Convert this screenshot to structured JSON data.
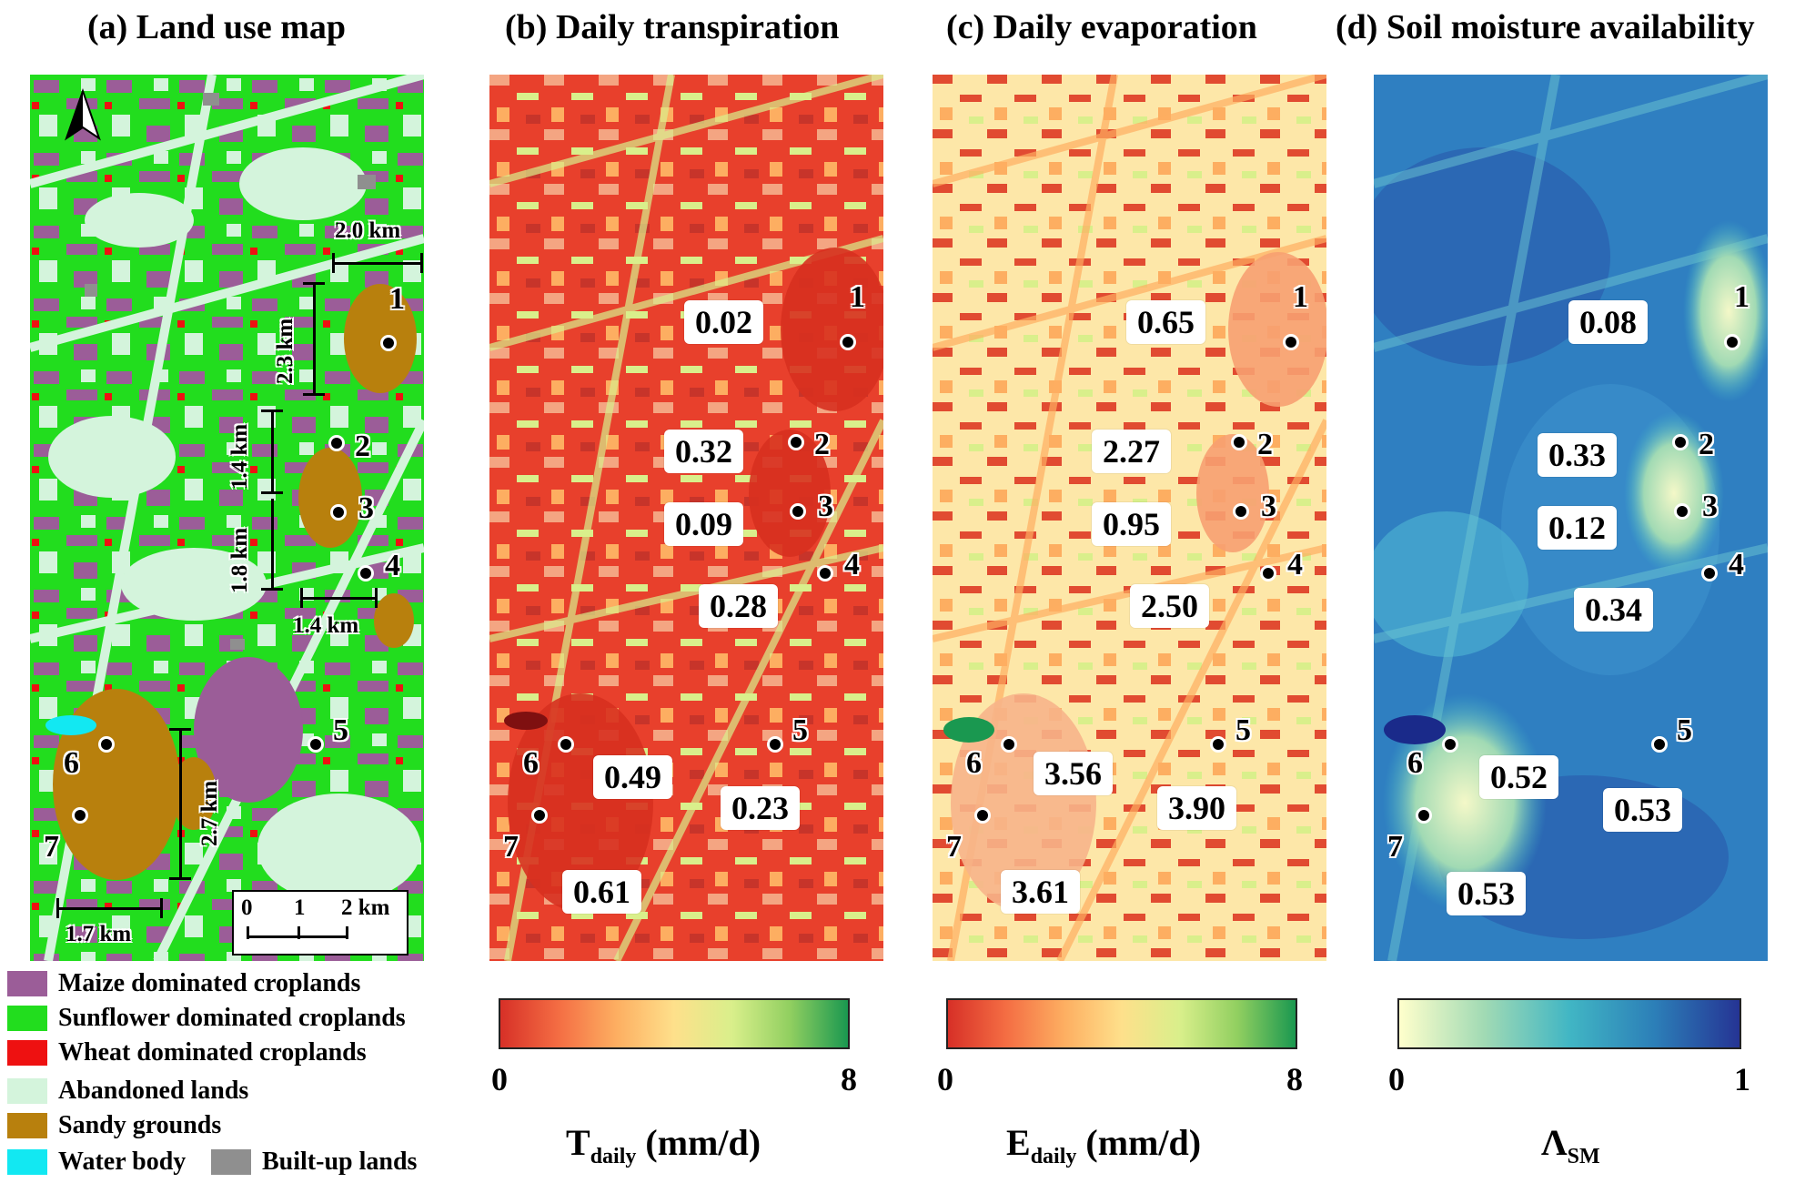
{
  "panels": {
    "a": {
      "title": "(a) Land use map"
    },
    "b": {
      "title": "(b) Daily transpiration",
      "values": [
        "0.02",
        "0.32",
        "0.09",
        "0.28",
        "0.49",
        "0.23",
        "0.61"
      ],
      "colorbar": {
        "min": "0",
        "max": "8",
        "label_main": "T",
        "label_sub": "daily",
        "label_unit": " (mm/d)"
      }
    },
    "c": {
      "title": "(c) Daily evaporation",
      "values": [
        "0.65",
        "2.27",
        "0.95",
        "2.50",
        "3.56",
        "3.90",
        "3.61"
      ],
      "colorbar": {
        "min": "0",
        "max": "8",
        "label_main": "E",
        "label_sub": "daily",
        "label_unit": " (mm/d)"
      }
    },
    "d": {
      "title": "(d) Soil moisture availability",
      "values": [
        "0.08",
        "0.33",
        "0.12",
        "0.34",
        "0.52",
        "0.53",
        "0.53"
      ],
      "colorbar": {
        "min": "0",
        "max": "1",
        "label_main": "Λ",
        "label_sub": "SM",
        "label_unit": ""
      }
    }
  },
  "site_numbers": [
    "1",
    "2",
    "3",
    "4",
    "5",
    "6",
    "7"
  ],
  "distances": [
    "2.0 km",
    "2.3 km",
    "1.4 km",
    "1.8 km",
    "1.4 km",
    "2.7 km",
    "1.7 km"
  ],
  "scale_bar": {
    "t0": "0",
    "t1": "1",
    "t2": "2 km"
  },
  "legend": [
    {
      "label": "Maize dominated croplands",
      "color": "#9b5d98"
    },
    {
      "label": "Sunflower dominated croplands",
      "color": "#22dd1e"
    },
    {
      "label": "Wheat dominated croplands",
      "color": "#ee1111"
    },
    {
      "label": "Abandoned lands",
      "color": "#d4f4dc"
    },
    {
      "label": "Sandy grounds",
      "color": "#b8800d"
    },
    {
      "label": "Water body",
      "color": "#12e8f2"
    },
    {
      "label": "Built-up lands",
      "color": "#8f8f8f"
    }
  ],
  "colors": {
    "transp_ramp": [
      "#d73027",
      "#f46d43",
      "#fdae61",
      "#fee08b",
      "#d9ef8b",
      "#91cf60",
      "#1a9850"
    ],
    "soil_ramp": [
      "#ffffcc",
      "#a1dab4",
      "#41b6c4",
      "#2c7fb8",
      "#253494"
    ]
  }
}
